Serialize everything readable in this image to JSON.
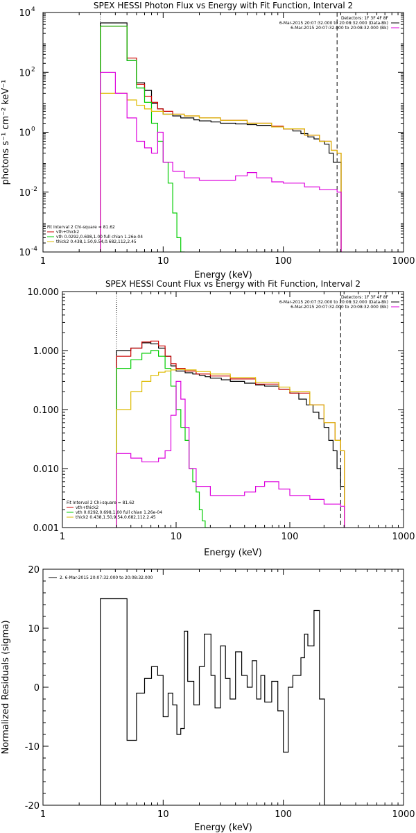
{
  "chart_data": [
    {
      "type": "line",
      "title": "SPEX HESSI Photon Flux vs Energy with Fit Function, Interval 2",
      "xlabel": "Energy (keV)",
      "ylabel": "photons s⁻¹ cm⁻² keV⁻¹",
      "xscale": "log",
      "yscale": "log",
      "xlim": [
        1,
        1000
      ],
      "ylim": [
        0.0001,
        10000
      ],
      "x_ticks": [
        {
          "v": 1,
          "label": "1"
        },
        {
          "v": 10,
          "label": "10"
        },
        {
          "v": 100,
          "label": "100"
        },
        {
          "v": 1000,
          "label": "1000"
        }
      ],
      "y_ticks": [
        {
          "v": 10000,
          "base": "10",
          "exp": "4"
        },
        {
          "v": 100,
          "base": "10",
          "exp": "2"
        },
        {
          "v": 1,
          "base": "10",
          "exp": "0"
        },
        {
          "v": 0.01,
          "base": "10",
          "exp": "-2"
        },
        {
          "v": 0.0001,
          "base": "10",
          "exp": "-4"
        }
      ],
      "top_right_text": [
        "Detectors: 1F 3F 4F 8F",
        "6-Mar-2015 20:07:32.000 to 20:08:32.000 (Data-Bk)",
        "6-Mar-2015 20:07:32.000 to 20:08:32.000 (Bk)"
      ],
      "fit_text": [
        "Fit Interval 2   Chi-square = 81.62",
        "vth+thick2",
        "vth 0.0292,0.698,1.00  full chian 1.26e-04",
        "thick2 0.438,1.50,9.54,0.682,112,2.45"
      ],
      "vlines": [
        3,
        280
      ],
      "series": [
        {
          "name": "6-Mar-2015 20:07:32.000 to 20:08:32.000 (Data-Bk)",
          "color": "#000000",
          "x": [
            3,
            4,
            5,
            6,
            7,
            8,
            9,
            10,
            12,
            14,
            16,
            18,
            20,
            25,
            30,
            40,
            50,
            60,
            80,
            100,
            120,
            140,
            160,
            180,
            200,
            220,
            240,
            260,
            280
          ],
          "y": [
            4500,
            4500,
            250,
            45,
            25,
            9,
            6,
            4,
            3.5,
            3,
            3,
            2.6,
            2.4,
            2.2,
            2.0,
            1.9,
            1.8,
            1.7,
            1.5,
            1.3,
            1.1,
            0.9,
            0.7,
            0.6,
            0.5,
            0.4,
            0.2,
            0.1,
            0.1
          ]
        },
        {
          "name": "vth+thick2",
          "color": "#cc0000",
          "x": [
            3,
            4,
            5,
            6,
            7,
            8,
            9,
            10,
            12,
            15,
            20,
            30,
            50,
            80,
            100,
            150,
            200,
            250,
            280
          ],
          "y": [
            3500,
            3500,
            300,
            40,
            16,
            10,
            6,
            5,
            4,
            3.5,
            3,
            2.5,
            2,
            1.6,
            1.3,
            0.8,
            0.5,
            0.25,
            0.2
          ]
        },
        {
          "name": "vth",
          "color": "#00cc00",
          "x": [
            3,
            4,
            5,
            6,
            7,
            8,
            9,
            10,
            11,
            12,
            13,
            14
          ],
          "y": [
            3500,
            3500,
            250,
            30,
            10,
            2,
            0.5,
            0.1,
            0.02,
            0.002,
            0.0003,
            0.0001
          ]
        },
        {
          "name": "thick2",
          "color": "#ddbb00",
          "x": [
            3,
            4,
            5,
            6,
            7,
            8,
            10,
            15,
            20,
            30,
            50,
            80,
            100,
            150,
            200,
            250,
            280
          ],
          "y": [
            20,
            20,
            12,
            8,
            6,
            5,
            4,
            3.5,
            3,
            2.5,
            2,
            1.5,
            1.3,
            0.8,
            0.5,
            0.25,
            0.2
          ]
        },
        {
          "name": "6-Mar-2015 20:07:32.000 to 20:08:32.000 (Bk)",
          "color": "#dd00dd",
          "x": [
            3,
            4,
            5,
            6,
            7,
            8,
            9,
            10,
            12,
            15,
            20,
            30,
            40,
            50,
            60,
            80,
            100,
            150,
            200,
            280
          ],
          "y": [
            100,
            20,
            3,
            0.5,
            0.3,
            0.2,
            1,
            0.1,
            0.05,
            0.03,
            0.025,
            0.025,
            0.035,
            0.045,
            0.03,
            0.022,
            0.02,
            0.015,
            0.012,
            0.01
          ]
        }
      ]
    },
    {
      "type": "line",
      "title": "SPEX HESSI Count Flux vs Energy with Fit Function, Interval 2",
      "xlabel": "Energy (keV)",
      "ylabel": "",
      "xscale": "log",
      "yscale": "log",
      "xlim": [
        1,
        1000
      ],
      "ylim": [
        0.001,
        10
      ],
      "x_ticks": [
        {
          "v": 1,
          "label": "1"
        },
        {
          "v": 10,
          "label": "10"
        },
        {
          "v": 100,
          "label": "100"
        },
        {
          "v": 1000,
          "label": "1000"
        }
      ],
      "y_ticks": [
        {
          "v": 10,
          "label": "10.000"
        },
        {
          "v": 1,
          "label": "1.000"
        },
        {
          "v": 0.1,
          "label": "0.100"
        },
        {
          "v": 0.01,
          "label": "0.010"
        },
        {
          "v": 0.001,
          "label": "0.001"
        }
      ],
      "top_right_text": [
        "Detectors: 1F 3F 4F 8F",
        "6-Mar-2015 20:07:32.000 to 20:08:32.000 (Data-Bk)",
        "6-Mar-2015 20:07:32.000 to 20:08:32.000 (Bk)"
      ],
      "fit_text": [
        "Fit Interval 2   Chi-square = 81.62",
        "vth+thick2",
        "vth 0.0292,0.698,1.00  full chian 1.26e-04",
        "thick2 0.438,1.50,9.54,0.682,112,2.45"
      ],
      "vlines": [
        3,
        280
      ],
      "series": [
        {
          "name": "6-Mar-2015 20:07:32.000 to 20:08:32.000 (Data-Bk)",
          "color": "#000000",
          "x": [
            3,
            4,
            5,
            6,
            7,
            8,
            9,
            10,
            12,
            14,
            16,
            18,
            20,
            25,
            30,
            40,
            50,
            60,
            80,
            100,
            120,
            140,
            160,
            180,
            200,
            220,
            240,
            260,
            280
          ],
          "y": [
            1.0,
            1.1,
            1.35,
            1.3,
            1.1,
            0.8,
            0.55,
            0.45,
            0.42,
            0.4,
            0.38,
            0.36,
            0.34,
            0.32,
            0.3,
            0.28,
            0.26,
            0.25,
            0.22,
            0.19,
            0.15,
            0.12,
            0.09,
            0.07,
            0.05,
            0.03,
            0.02,
            0.01,
            0.005
          ]
        },
        {
          "name": "vth+thick2",
          "color": "#cc0000",
          "x": [
            3,
            4,
            5,
            6,
            7,
            8,
            9,
            10,
            12,
            15,
            20,
            30,
            50,
            80,
            100,
            150,
            200,
            250,
            280
          ],
          "y": [
            0.8,
            1.1,
            1.4,
            1.45,
            1.2,
            0.8,
            0.6,
            0.5,
            0.45,
            0.4,
            0.37,
            0.33,
            0.27,
            0.22,
            0.19,
            0.12,
            0.06,
            0.03,
            0.02
          ]
        },
        {
          "name": "vth",
          "color": "#00cc00",
          "x": [
            3,
            4,
            5,
            6,
            7,
            8,
            9,
            10,
            11,
            12,
            13,
            14,
            15,
            16,
            17,
            18
          ],
          "y": [
            0.5,
            0.7,
            0.9,
            1.0,
            0.8,
            0.5,
            0.25,
            0.1,
            0.05,
            0.03,
            0.01,
            0.006,
            0.004,
            0.002,
            0.0013,
            0.001
          ]
        },
        {
          "name": "thick2",
          "color": "#ddbb00",
          "x": [
            3,
            4,
            5,
            6,
            7,
            8,
            9,
            10,
            12,
            15,
            20,
            30,
            50,
            80,
            100,
            150,
            200,
            250,
            280
          ],
          "y": [
            0.1,
            0.2,
            0.3,
            0.38,
            0.43,
            0.45,
            0.47,
            0.48,
            0.47,
            0.44,
            0.4,
            0.35,
            0.29,
            0.24,
            0.2,
            0.12,
            0.06,
            0.03,
            0.02
          ]
        },
        {
          "name": "6-Mar-2015 20:07:32.000 to 20:08:32.000 (Bk)",
          "color": "#dd00dd",
          "x": [
            3,
            4,
            5,
            6,
            7,
            8,
            9,
            10,
            11,
            12,
            13,
            15,
            20,
            30,
            40,
            50,
            60,
            80,
            100,
            150,
            200,
            280
          ],
          "y": [
            0.018,
            0.015,
            0.013,
            0.013,
            0.015,
            0.02,
            0.08,
            0.3,
            0.15,
            0.05,
            0.01,
            0.005,
            0.0035,
            0.0035,
            0.004,
            0.005,
            0.006,
            0.0045,
            0.0035,
            0.003,
            0.0025,
            0.0023
          ]
        }
      ]
    },
    {
      "type": "line",
      "title": "",
      "xlabel": "Energy (keV)",
      "ylabel": "Normalized Residuals (sigma)",
      "xscale": "log",
      "yscale": "linear",
      "xlim": [
        1,
        1000
      ],
      "ylim": [
        -20,
        20
      ],
      "x_ticks": [
        {
          "v": 1,
          "label": "1"
        },
        {
          "v": 10,
          "label": "10"
        },
        {
          "v": 100,
          "label": "100"
        },
        {
          "v": 1000,
          "label": "1000"
        }
      ],
      "y_ticks": [
        {
          "v": 20,
          "label": "20"
        },
        {
          "v": 10,
          "label": "10"
        },
        {
          "v": 0,
          "label": "0"
        },
        {
          "v": -10,
          "label": "-10"
        },
        {
          "v": -20,
          "label": "-20"
        }
      ],
      "legend_text": "2.  6-Mar-2015 20:07:32.000 to 20:08:32.000",
      "series": [
        {
          "name": "2.  6-Mar-2015 20:07:32.000 to 20:08:32.000",
          "color": "#000000",
          "x": [
            3,
            4,
            5,
            6,
            7,
            8,
            9,
            10,
            11,
            12,
            13,
            14,
            15,
            16,
            18,
            20,
            22,
            25,
            27,
            30,
            33,
            36,
            40,
            45,
            50,
            55,
            60,
            65,
            70,
            80,
            90,
            100,
            110,
            120,
            130,
            140,
            150,
            160,
            180,
            200,
            220,
            240,
            260,
            280
          ],
          "y": [
            15,
            15,
            -9,
            -1,
            1.5,
            3.5,
            2,
            -5,
            -1,
            -3,
            -8,
            -7,
            9.5,
            1,
            -3,
            3.5,
            9,
            2,
            -3.5,
            7,
            1.5,
            -2,
            6,
            2,
            0,
            4.5,
            -2,
            2,
            -2.5,
            1,
            -4,
            -11,
            0,
            2,
            2,
            5,
            9,
            7,
            13,
            -2,
            -20,
            -20,
            -20,
            -20
          ]
        }
      ]
    }
  ]
}
